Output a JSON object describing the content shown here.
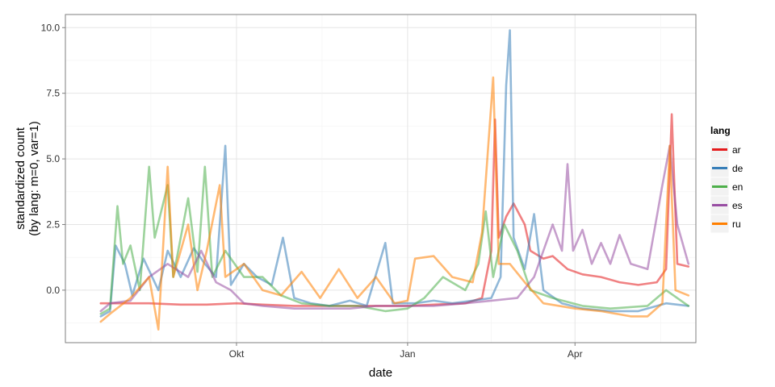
{
  "chart_data": {
    "type": "line",
    "xlabel": "date",
    "ylabel_line1": "standardized count",
    "ylabel_line2": "(by lang: m=0, var=1)",
    "x_ticks": [
      {
        "label": "Okt",
        "date": "2014-10-01"
      },
      {
        "label": "Jan",
        "date": "2015-01-01"
      },
      {
        "label": "Apr",
        "date": "2015-04-01"
      }
    ],
    "xlim": [
      "2014-07-01",
      "2015-06-05"
    ],
    "ylim": [
      -2,
      10.5
    ],
    "y_ticks": [
      0.0,
      2.5,
      5.0,
      7.5,
      10.0
    ],
    "y_tick_labels": [
      "0.0",
      "2.5",
      "5.0",
      "7.5",
      "10.0"
    ],
    "grid": true,
    "legend": {
      "title": "lang",
      "position": "right"
    },
    "series": [
      {
        "name": "ar",
        "color": "#e41a1c",
        "points": [
          [
            "2014-07-20",
            -0.5
          ],
          [
            "2014-08-01",
            -0.5
          ],
          [
            "2014-08-15",
            -0.5
          ],
          [
            "2014-09-01",
            -0.55
          ],
          [
            "2014-09-15",
            -0.55
          ],
          [
            "2014-10-01",
            -0.5
          ],
          [
            "2014-10-15",
            -0.55
          ],
          [
            "2014-11-01",
            -0.6
          ],
          [
            "2014-11-15",
            -0.6
          ],
          [
            "2014-12-01",
            -0.6
          ],
          [
            "2014-12-15",
            -0.6
          ],
          [
            "2015-01-01",
            -0.6
          ],
          [
            "2015-01-15",
            -0.55
          ],
          [
            "2015-02-01",
            -0.5
          ],
          [
            "2015-02-10",
            -0.3
          ],
          [
            "2015-02-15",
            1.5
          ],
          [
            "2015-02-17",
            6.5
          ],
          [
            "2015-02-19",
            2.0
          ],
          [
            "2015-02-23",
            2.8
          ],
          [
            "2015-02-27",
            3.3
          ],
          [
            "2015-03-05",
            2.5
          ],
          [
            "2015-03-08",
            1.5
          ],
          [
            "2015-03-15",
            1.2
          ],
          [
            "2015-03-20",
            1.3
          ],
          [
            "2015-03-28",
            0.8
          ],
          [
            "2015-04-05",
            0.6
          ],
          [
            "2015-04-15",
            0.5
          ],
          [
            "2015-04-25",
            0.3
          ],
          [
            "2015-05-05",
            0.2
          ],
          [
            "2015-05-15",
            0.3
          ],
          [
            "2015-05-20",
            0.8
          ],
          [
            "2015-05-23",
            6.7
          ],
          [
            "2015-05-26",
            1.0
          ],
          [
            "2015-06-01",
            0.9
          ]
        ]
      },
      {
        "name": "de",
        "color": "#377eb8",
        "points": [
          [
            "2014-07-20",
            -1.0
          ],
          [
            "2014-07-25",
            -0.8
          ],
          [
            "2014-07-28",
            1.7
          ],
          [
            "2014-08-02",
            1.0
          ],
          [
            "2014-08-06",
            -0.2
          ],
          [
            "2014-08-12",
            1.2
          ],
          [
            "2014-08-20",
            0.0
          ],
          [
            "2014-08-25",
            1.5
          ],
          [
            "2014-09-01",
            0.5
          ],
          [
            "2014-09-08",
            1.6
          ],
          [
            "2014-09-14",
            1.0
          ],
          [
            "2014-09-20",
            0.5
          ],
          [
            "2014-09-25",
            5.5
          ],
          [
            "2014-09-28",
            0.2
          ],
          [
            "2014-10-05",
            1.0
          ],
          [
            "2014-10-12",
            0.5
          ],
          [
            "2014-10-20",
            0.2
          ],
          [
            "2014-10-26",
            2.0
          ],
          [
            "2014-11-01",
            -0.3
          ],
          [
            "2014-11-10",
            -0.5
          ],
          [
            "2014-11-20",
            -0.6
          ],
          [
            "2014-12-01",
            -0.4
          ],
          [
            "2014-12-10",
            -0.6
          ],
          [
            "2014-12-20",
            1.8
          ],
          [
            "2014-12-24",
            -0.5
          ],
          [
            "2015-01-05",
            -0.5
          ],
          [
            "2015-01-15",
            -0.4
          ],
          [
            "2015-01-25",
            -0.5
          ],
          [
            "2015-02-05",
            -0.4
          ],
          [
            "2015-02-15",
            -0.3
          ],
          [
            "2015-02-20",
            0.5
          ],
          [
            "2015-02-23",
            7.8
          ],
          [
            "2015-02-25",
            9.9
          ],
          [
            "2015-02-27",
            2.0
          ],
          [
            "2015-03-05",
            0.8
          ],
          [
            "2015-03-10",
            2.9
          ],
          [
            "2015-03-15",
            0.0
          ],
          [
            "2015-03-25",
            -0.5
          ],
          [
            "2015-04-05",
            -0.7
          ],
          [
            "2015-04-20",
            -0.8
          ],
          [
            "2015-05-05",
            -0.8
          ],
          [
            "2015-05-20",
            -0.5
          ],
          [
            "2015-06-01",
            -0.6
          ]
        ]
      },
      {
        "name": "en",
        "color": "#4daf4a",
        "points": [
          [
            "2014-07-20",
            -0.9
          ],
          [
            "2014-07-25",
            -0.7
          ],
          [
            "2014-07-29",
            3.2
          ],
          [
            "2014-08-01",
            1.0
          ],
          [
            "2014-08-05",
            1.7
          ],
          [
            "2014-08-10",
            0.0
          ],
          [
            "2014-08-15",
            4.7
          ],
          [
            "2014-08-18",
            2.0
          ],
          [
            "2014-08-25",
            4.0
          ],
          [
            "2014-08-28",
            0.5
          ],
          [
            "2014-09-05",
            3.5
          ],
          [
            "2014-09-10",
            0.7
          ],
          [
            "2014-09-14",
            4.7
          ],
          [
            "2014-09-18",
            0.5
          ],
          [
            "2014-09-25",
            1.5
          ],
          [
            "2014-10-05",
            0.5
          ],
          [
            "2014-10-15",
            0.5
          ],
          [
            "2014-10-25",
            -0.2
          ],
          [
            "2014-11-05",
            -0.5
          ],
          [
            "2014-11-20",
            -0.6
          ],
          [
            "2014-12-05",
            -0.6
          ],
          [
            "2014-12-20",
            -0.8
          ],
          [
            "2015-01-01",
            -0.7
          ],
          [
            "2015-01-10",
            -0.3
          ],
          [
            "2015-01-20",
            0.5
          ],
          [
            "2015-02-01",
            0.0
          ],
          [
            "2015-02-08",
            1.0
          ],
          [
            "2015-02-12",
            3.0
          ],
          [
            "2015-02-16",
            0.5
          ],
          [
            "2015-02-22",
            2.5
          ],
          [
            "2015-03-01",
            1.5
          ],
          [
            "2015-03-08",
            0.0
          ],
          [
            "2015-03-20",
            -0.3
          ],
          [
            "2015-04-05",
            -0.6
          ],
          [
            "2015-04-20",
            -0.7
          ],
          [
            "2015-05-10",
            -0.6
          ],
          [
            "2015-05-20",
            0.0
          ],
          [
            "2015-06-01",
            -0.6
          ]
        ]
      },
      {
        "name": "es",
        "color": "#984ea3",
        "points": [
          [
            "2014-07-20",
            -0.8
          ],
          [
            "2014-07-25",
            -0.5
          ],
          [
            "2014-08-05",
            -0.4
          ],
          [
            "2014-08-15",
            0.5
          ],
          [
            "2014-08-25",
            1.0
          ],
          [
            "2014-09-05",
            0.5
          ],
          [
            "2014-09-12",
            1.5
          ],
          [
            "2014-09-20",
            0.3
          ],
          [
            "2014-09-28",
            0.0
          ],
          [
            "2014-10-05",
            -0.5
          ],
          [
            "2014-10-15",
            -0.6
          ],
          [
            "2014-11-01",
            -0.7
          ],
          [
            "2014-11-15",
            -0.7
          ],
          [
            "2014-12-01",
            -0.7
          ],
          [
            "2014-12-15",
            -0.6
          ],
          [
            "2015-01-01",
            -0.6
          ],
          [
            "2015-01-15",
            -0.6
          ],
          [
            "2015-02-01",
            -0.5
          ],
          [
            "2015-02-15",
            -0.4
          ],
          [
            "2015-03-01",
            -0.3
          ],
          [
            "2015-03-10",
            0.5
          ],
          [
            "2015-03-15",
            1.5
          ],
          [
            "2015-03-20",
            2.5
          ],
          [
            "2015-03-25",
            1.5
          ],
          [
            "2015-03-28",
            4.8
          ],
          [
            "2015-03-31",
            1.5
          ],
          [
            "2015-04-05",
            2.3
          ],
          [
            "2015-04-10",
            1.0
          ],
          [
            "2015-04-15",
            1.8
          ],
          [
            "2015-04-20",
            1.0
          ],
          [
            "2015-04-25",
            2.1
          ],
          [
            "2015-05-01",
            1.0
          ],
          [
            "2015-05-10",
            0.8
          ],
          [
            "2015-05-18",
            4.0
          ],
          [
            "2015-05-22",
            5.5
          ],
          [
            "2015-05-26",
            2.5
          ],
          [
            "2015-06-01",
            1.0
          ]
        ]
      },
      {
        "name": "ru",
        "color": "#ff7f00",
        "points": [
          [
            "2014-07-20",
            -1.2
          ],
          [
            "2014-07-25",
            -0.9
          ],
          [
            "2014-08-05",
            -0.3
          ],
          [
            "2014-08-15",
            0.5
          ],
          [
            "2014-08-20",
            -1.5
          ],
          [
            "2014-08-25",
            4.7
          ],
          [
            "2014-08-28",
            0.5
          ],
          [
            "2014-09-05",
            2.5
          ],
          [
            "2014-09-10",
            0.0
          ],
          [
            "2014-09-15",
            1.5
          ],
          [
            "2014-09-22",
            4.0
          ],
          [
            "2014-09-25",
            0.5
          ],
          [
            "2014-10-05",
            1.0
          ],
          [
            "2014-10-15",
            0.0
          ],
          [
            "2014-10-25",
            -0.2
          ],
          [
            "2014-11-05",
            0.7
          ],
          [
            "2014-11-15",
            -0.3
          ],
          [
            "2014-11-25",
            0.8
          ],
          [
            "2014-12-05",
            -0.3
          ],
          [
            "2014-12-15",
            0.5
          ],
          [
            "2014-12-25",
            -0.5
          ],
          [
            "2015-01-01",
            -0.4
          ],
          [
            "2015-01-05",
            1.2
          ],
          [
            "2015-01-15",
            1.3
          ],
          [
            "2015-01-25",
            0.5
          ],
          [
            "2015-02-05",
            0.3
          ],
          [
            "2015-02-10",
            2.2
          ],
          [
            "2015-02-16",
            8.1
          ],
          [
            "2015-02-19",
            1.0
          ],
          [
            "2015-02-25",
            1.0
          ],
          [
            "2015-03-05",
            0.3
          ],
          [
            "2015-03-15",
            -0.5
          ],
          [
            "2015-04-01",
            -0.7
          ],
          [
            "2015-04-15",
            -0.8
          ],
          [
            "2015-05-01",
            -1.0
          ],
          [
            "2015-05-10",
            -1.0
          ],
          [
            "2015-05-18",
            -0.5
          ],
          [
            "2015-05-22",
            5.5
          ],
          [
            "2015-05-25",
            0.0
          ],
          [
            "2015-06-01",
            -0.2
          ]
        ]
      }
    ]
  }
}
